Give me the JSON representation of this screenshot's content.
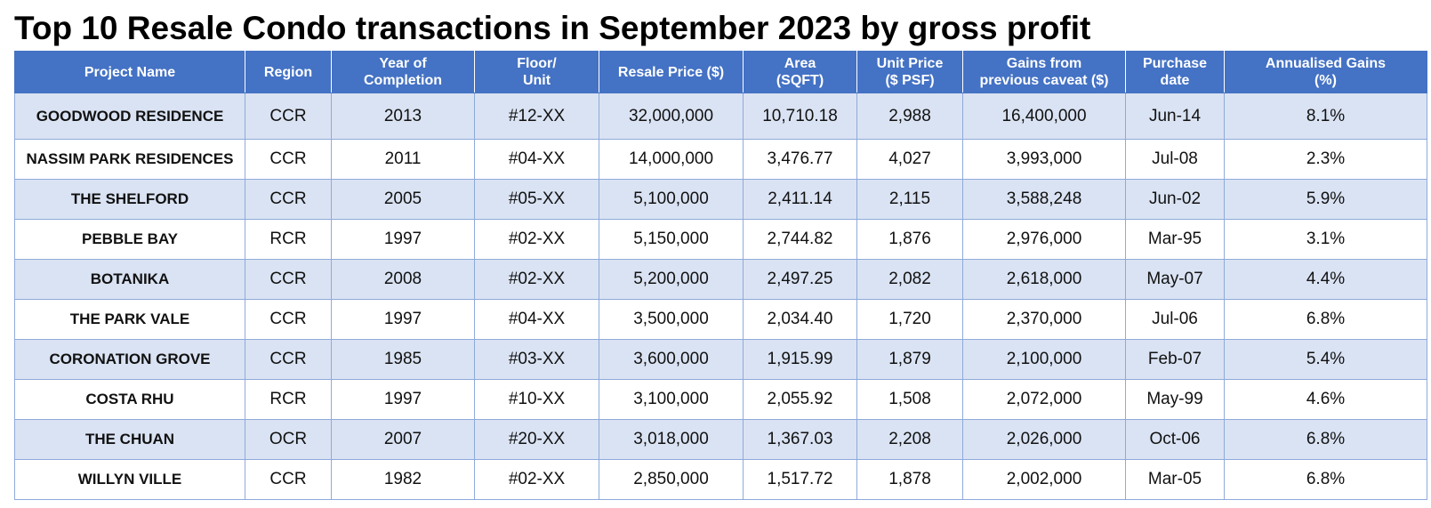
{
  "title": "Top 10 Resale Condo transactions in September 2023 by gross profit",
  "columns": [
    [
      "Project Name"
    ],
    [
      "Region"
    ],
    [
      "Year of",
      "Completion"
    ],
    [
      "Floor/",
      "Unit"
    ],
    [
      "Resale Price ($)"
    ],
    [
      "Area",
      "(SQFT)"
    ],
    [
      "Unit Price",
      "($ PSF)"
    ],
    [
      "Gains from",
      "previous caveat ($)"
    ],
    [
      "Purchase",
      "date"
    ],
    [
      "Annualised Gains",
      "(%)"
    ]
  ],
  "rows": [
    [
      "GOODWOOD RESIDENCE",
      "CCR",
      "2013",
      "#12-XX",
      "32,000,000",
      "10,710.18",
      "2,988",
      "16,400,000",
      "Jun-14",
      "8.1%"
    ],
    [
      "NASSIM PARK RESIDENCES",
      "CCR",
      "2011",
      "#04-XX",
      "14,000,000",
      "3,476.77",
      "4,027",
      "3,993,000",
      "Jul-08",
      "2.3%"
    ],
    [
      "THE SHELFORD",
      "CCR",
      "2005",
      "#05-XX",
      "5,100,000",
      "2,411.14",
      "2,115",
      "3,588,248",
      "Jun-02",
      "5.9%"
    ],
    [
      "PEBBLE BAY",
      "RCR",
      "1997",
      "#02-XX",
      "5,150,000",
      "2,744.82",
      "1,876",
      "2,976,000",
      "Mar-95",
      "3.1%"
    ],
    [
      "BOTANIKA",
      "CCR",
      "2008",
      "#02-XX",
      "5,200,000",
      "2,497.25",
      "2,082",
      "2,618,000",
      "May-07",
      "4.4%"
    ],
    [
      "THE PARK VALE",
      "CCR",
      "1997",
      "#04-XX",
      "3,500,000",
      "2,034.40",
      "1,720",
      "2,370,000",
      "Jul-06",
      "6.8%"
    ],
    [
      "CORONATION GROVE",
      "CCR",
      "1985",
      "#03-XX",
      "3,600,000",
      "1,915.99",
      "1,879",
      "2,100,000",
      "Feb-07",
      "5.4%"
    ],
    [
      "COSTA RHU",
      "RCR",
      "1997",
      "#10-XX",
      "3,100,000",
      "2,055.92",
      "1,508",
      "2,072,000",
      "May-99",
      "4.6%"
    ],
    [
      "THE CHUAN",
      "OCR",
      "2007",
      "#20-XX",
      "3,018,000",
      "1,367.03",
      "2,208",
      "2,026,000",
      "Oct-06",
      "6.8%"
    ],
    [
      "WILLYN VILLE",
      "CCR",
      "1982",
      "#02-XX",
      "2,850,000",
      "1,517.72",
      "1,878",
      "2,002,000",
      "Mar-05",
      "6.8%"
    ]
  ],
  "colors": {
    "header_bg": "#4472c4",
    "header_text": "#ffffff",
    "alt_row_bg": "#dae3f3",
    "grid": "#8eaadb"
  }
}
